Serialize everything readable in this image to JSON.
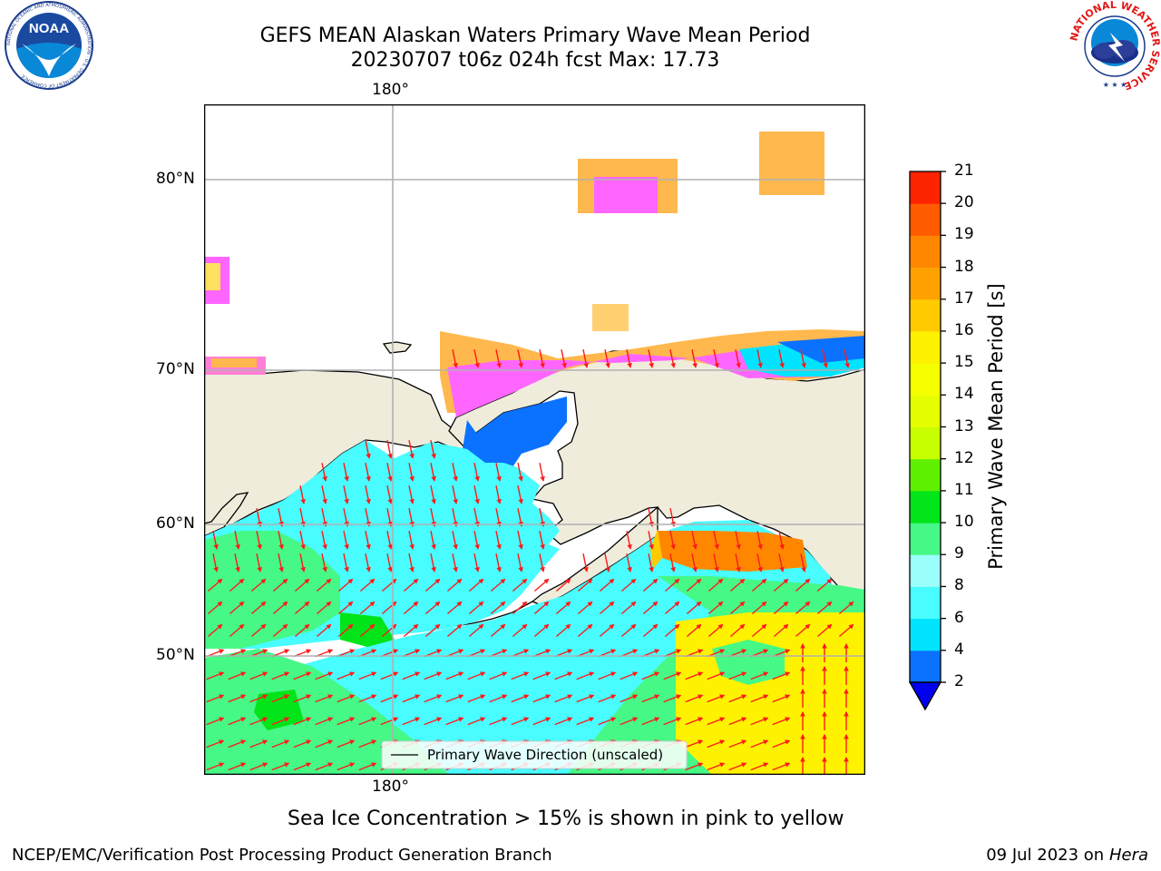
{
  "title": {
    "line1": "GEFS MEAN Alaskan Waters Primary Wave Mean Period",
    "line2": "20230707 t06z 024h fcst   Max: 17.73"
  },
  "logos": {
    "left": {
      "name": "noaa-logo",
      "text": "NOAA",
      "ring_text": "NATIONAL OCEANIC AND ATMOSPHERIC ADMINISTRATION · U.S. DEPARTMENT OF COMMERCE"
    },
    "right": {
      "name": "nws-logo",
      "ring_text": "NATIONAL WEATHER SERVICE"
    }
  },
  "map": {
    "lon_labels": {
      "top": "180°",
      "bottom": "180°"
    },
    "lat_labels": [
      "80°N",
      "70°N",
      "60°N",
      "50°N"
    ],
    "legend": "Primary Wave Direction (unscaled)",
    "colors": {
      "land": "#efecdc",
      "coast": "#000000",
      "arrow": "#ff1a1a",
      "grid": "#b0b0b0"
    }
  },
  "colorbar": {
    "label": "Primary Wave Mean Period [s]",
    "ticks": [
      "2",
      "4",
      "6",
      "8",
      "9",
      "10",
      "11",
      "12",
      "13",
      "14",
      "15",
      "16",
      "17",
      "18",
      "19",
      "20",
      "21"
    ],
    "colors": [
      "#0a72ff",
      "#00e4ff",
      "#48fcff",
      "#9bfffc",
      "#46f886",
      "#00e419",
      "#5ef000",
      "#c8ff00",
      "#e6ff00",
      "#f5ff00",
      "#fff200",
      "#ffca00",
      "#ffa200",
      "#ff8700",
      "#ff5c00",
      "#ff2400"
    ],
    "under_color": "#0000ee"
  },
  "notes": {
    "sea_ice": "Sea Ice Concentration > 15% is shown in pink to yellow"
  },
  "footer": {
    "left": "NCEP/EMC/Verification Post Processing Product Generation Branch",
    "date": "09 Jul 2023 on ",
    "machine": "Hera"
  }
}
